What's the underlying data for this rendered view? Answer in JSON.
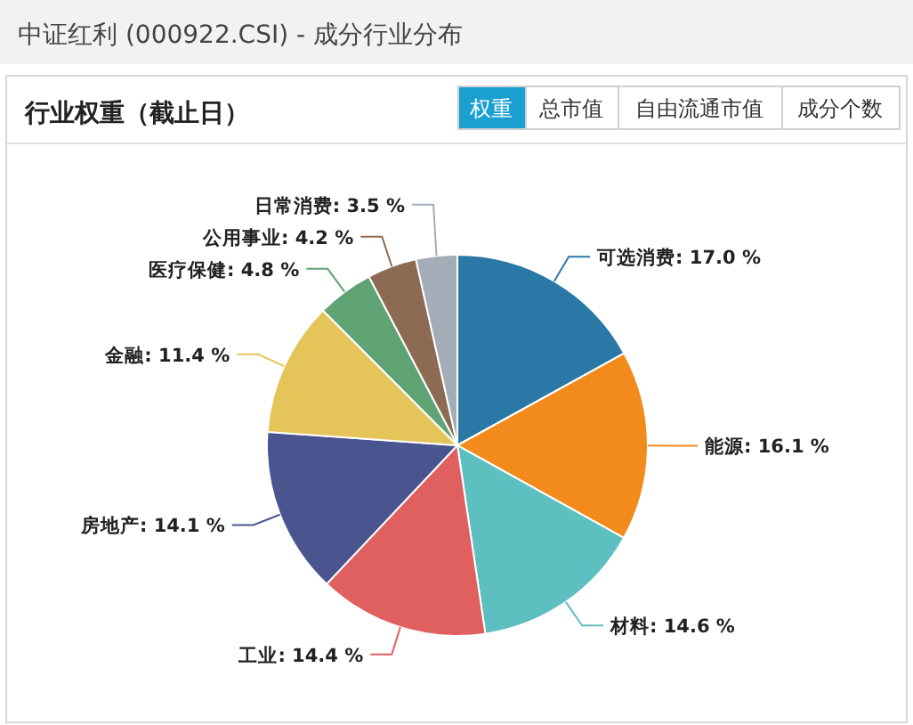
{
  "chart_data": {
    "type": "pie",
    "title": "中证红利 (000922.CSI) - 成分行业分布",
    "subtitle": "行业权重（截止日）",
    "annotations": [
      "权重",
      "总市值",
      "自由流通市值",
      "成分个数"
    ],
    "categories": [
      "可选消费",
      "能源",
      "材料",
      "工业",
      "房地产",
      "金融",
      "医疗保健",
      "公用事业",
      "日常消费"
    ],
    "values": [
      17.0,
      16.1,
      14.6,
      14.4,
      14.1,
      11.4,
      4.8,
      4.2,
      3.5
    ],
    "value_labels": [
      "17.0 %",
      "16.1 %",
      "14.6 %",
      "14.4 %",
      "14.1 %",
      "11.4 %",
      "4.8 %",
      "4.2 %",
      "3.5 %"
    ],
    "colors": [
      "#2a78a6",
      "#f38b1c",
      "#5dbfc0",
      "#e05f5f",
      "#4a5590",
      "#e5c55a",
      "#5fa374",
      "#8c6b52",
      "#a3adb8"
    ]
  }
}
